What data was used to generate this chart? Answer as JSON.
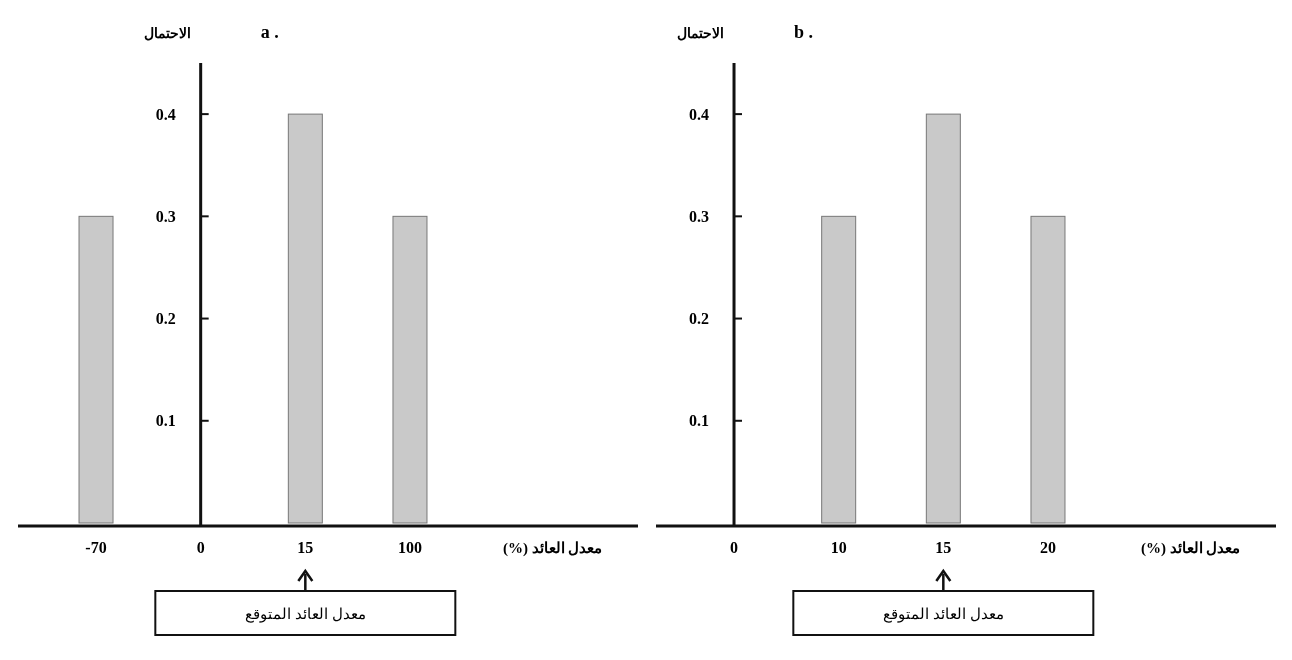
{
  "chart_data": [
    {
      "type": "bar",
      "title": "a .",
      "ylabel": "الاحتمال",
      "xlabel": "معدل العائد (%)",
      "categories": [
        "-70",
        "0",
        "15",
        "100"
      ],
      "values": [
        0.3,
        null,
        0.4,
        0.3
      ],
      "color": "#c9c9c9",
      "ylim": [
        0,
        0.45
      ],
      "yticks": [
        0.1,
        0.2,
        0.3,
        0.4
      ],
      "grid": false,
      "annotations": [
        {
          "text": "معدل العائد المتوقع",
          "x": "15"
        }
      ]
    },
    {
      "type": "bar",
      "title": "b .",
      "ylabel": "الاحتمال",
      "xlabel": "معدل العائد (%)",
      "categories": [
        "0",
        "10",
        "15",
        "20"
      ],
      "values": [
        null,
        0.3,
        0.4,
        0.3
      ],
      "color": "#c9c9c9",
      "ylim": [
        0,
        0.45
      ],
      "yticks": [
        0.1,
        0.2,
        0.3,
        0.4
      ],
      "grid": false,
      "annotations": [
        {
          "text": "معدل العائد المتوقع",
          "x": "15"
        }
      ]
    }
  ]
}
